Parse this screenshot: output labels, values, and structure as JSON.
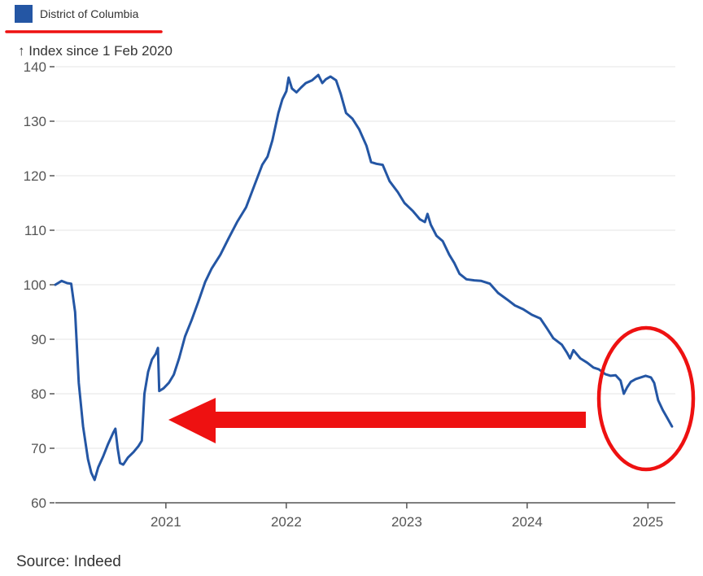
{
  "legend": {
    "label": "District of Columbia",
    "color": "#2456a4"
  },
  "annotations_colors": {
    "markup": "#ee1111"
  },
  "source": "Source: Indeed",
  "chart_data": {
    "type": "line",
    "title": "",
    "ylabel": "↑ Index since 1 Feb 2020",
    "xlabel": "",
    "ylim": [
      60,
      140
    ],
    "yticks": [
      60,
      70,
      80,
      90,
      100,
      110,
      120,
      130,
      140
    ],
    "xlim": [
      "2020-02-01",
      "2025-03-25"
    ],
    "xticks": [
      {
        "label": "2021",
        "date": "2021-01-01"
      },
      {
        "label": "2022",
        "date": "2022-01-01"
      },
      {
        "label": "2023",
        "date": "2023-01-01"
      },
      {
        "label": "2024",
        "date": "2024-01-01"
      },
      {
        "label": "2025",
        "date": "2025-01-01"
      }
    ],
    "grid": true,
    "series": [
      {
        "name": "District of Columbia",
        "color": "#2456a4",
        "points": [
          [
            "2020-02-01",
            100
          ],
          [
            "2020-02-20",
            100.7
          ],
          [
            "2020-03-08",
            100.3
          ],
          [
            "2020-03-20",
            100.2
          ],
          [
            "2020-04-01",
            95
          ],
          [
            "2020-04-12",
            82
          ],
          [
            "2020-04-25",
            74
          ],
          [
            "2020-05-10",
            68
          ],
          [
            "2020-05-20",
            65.5
          ],
          [
            "2020-05-30",
            64.2
          ],
          [
            "2020-06-10",
            66.5
          ],
          [
            "2020-06-25",
            68.5
          ],
          [
            "2020-07-10",
            70.8
          ],
          [
            "2020-07-25",
            72.8
          ],
          [
            "2020-08-01",
            73.6
          ],
          [
            "2020-08-08",
            70
          ],
          [
            "2020-08-15",
            67.3
          ],
          [
            "2020-08-25",
            67
          ],
          [
            "2020-09-08",
            68.3
          ],
          [
            "2020-09-25",
            69.3
          ],
          [
            "2020-10-10",
            70.4
          ],
          [
            "2020-10-20",
            71.4
          ],
          [
            "2020-10-28",
            80
          ],
          [
            "2020-11-08",
            84
          ],
          [
            "2020-11-20",
            86.3
          ],
          [
            "2020-12-01",
            87.3
          ],
          [
            "2020-12-08",
            88.4
          ],
          [
            "2020-12-12",
            80.5
          ],
          [
            "2020-12-25",
            81
          ],
          [
            "2021-01-10",
            82
          ],
          [
            "2021-01-25",
            83.5
          ],
          [
            "2021-02-10",
            86.5
          ],
          [
            "2021-02-28",
            90.5
          ],
          [
            "2021-03-20",
            93.5
          ],
          [
            "2021-04-10",
            97
          ],
          [
            "2021-04-30",
            100.5
          ],
          [
            "2021-05-20",
            103
          ],
          [
            "2021-06-15",
            105.5
          ],
          [
            "2021-07-10",
            108.5
          ],
          [
            "2021-08-05",
            111.5
          ],
          [
            "2021-09-01",
            114.2
          ],
          [
            "2021-09-25",
            118
          ],
          [
            "2021-10-20",
            122
          ],
          [
            "2021-11-05",
            123.5
          ],
          [
            "2021-11-20",
            126.5
          ],
          [
            "2021-12-08",
            131.5
          ],
          [
            "2021-12-20",
            134
          ],
          [
            "2022-01-01",
            135.5
          ],
          [
            "2022-01-08",
            138
          ],
          [
            "2022-01-18",
            136
          ],
          [
            "2022-02-01",
            135.3
          ],
          [
            "2022-02-15",
            136.2
          ],
          [
            "2022-03-01",
            137
          ],
          [
            "2022-03-20",
            137.5
          ],
          [
            "2022-04-08",
            138.5
          ],
          [
            "2022-04-20",
            137
          ],
          [
            "2022-05-01",
            137.7
          ],
          [
            "2022-05-15",
            138.2
          ],
          [
            "2022-06-01",
            137.5
          ],
          [
            "2022-06-15",
            135
          ],
          [
            "2022-07-01",
            131.5
          ],
          [
            "2022-07-20",
            130.5
          ],
          [
            "2022-08-10",
            128.5
          ],
          [
            "2022-09-01",
            125.5
          ],
          [
            "2022-09-15",
            122.5
          ],
          [
            "2022-10-01",
            122.2
          ],
          [
            "2022-10-20",
            122
          ],
          [
            "2022-11-10",
            119
          ],
          [
            "2022-12-05",
            117
          ],
          [
            "2022-12-25",
            115
          ],
          [
            "2023-01-20",
            113.5
          ],
          [
            "2023-02-10",
            112
          ],
          [
            "2023-02-25",
            111.5
          ],
          [
            "2023-03-05",
            113
          ],
          [
            "2023-03-15",
            111
          ],
          [
            "2023-04-01",
            109
          ],
          [
            "2023-04-20",
            108
          ],
          [
            "2023-05-10",
            105.5
          ],
          [
            "2023-05-25",
            104
          ],
          [
            "2023-06-10",
            102
          ],
          [
            "2023-07-01",
            101
          ],
          [
            "2023-07-25",
            100.8
          ],
          [
            "2023-08-15",
            100.7
          ],
          [
            "2023-09-10",
            100.2
          ],
          [
            "2023-10-05",
            98.5
          ],
          [
            "2023-11-01",
            97.3
          ],
          [
            "2023-11-25",
            96.2
          ],
          [
            "2023-12-20",
            95.5
          ],
          [
            "2024-01-15",
            94.5
          ],
          [
            "2024-02-10",
            93.8
          ],
          [
            "2024-03-01",
            92
          ],
          [
            "2024-03-20",
            90.2
          ],
          [
            "2024-04-15",
            89
          ],
          [
            "2024-05-01",
            87.5
          ],
          [
            "2024-05-10",
            86.5
          ],
          [
            "2024-05-20",
            88
          ],
          [
            "2024-06-10",
            86.5
          ],
          [
            "2024-07-01",
            85.7
          ],
          [
            "2024-07-20",
            84.8
          ],
          [
            "2024-08-05",
            84.5
          ],
          [
            "2024-08-25",
            83.6
          ],
          [
            "2024-09-10",
            83.3
          ],
          [
            "2024-09-25",
            83.4
          ],
          [
            "2024-10-10",
            82.4
          ],
          [
            "2024-10-20",
            80
          ],
          [
            "2024-10-30",
            81.2
          ],
          [
            "2024-11-10",
            82.2
          ],
          [
            "2024-11-25",
            82.7
          ],
          [
            "2024-12-10",
            83
          ],
          [
            "2024-12-25",
            83.3
          ],
          [
            "2025-01-10",
            83
          ],
          [
            "2025-01-20",
            82
          ],
          [
            "2025-02-01",
            78.8
          ],
          [
            "2025-02-15",
            77
          ],
          [
            "2025-03-01",
            75.5
          ],
          [
            "2025-03-15",
            74
          ]
        ]
      }
    ]
  }
}
